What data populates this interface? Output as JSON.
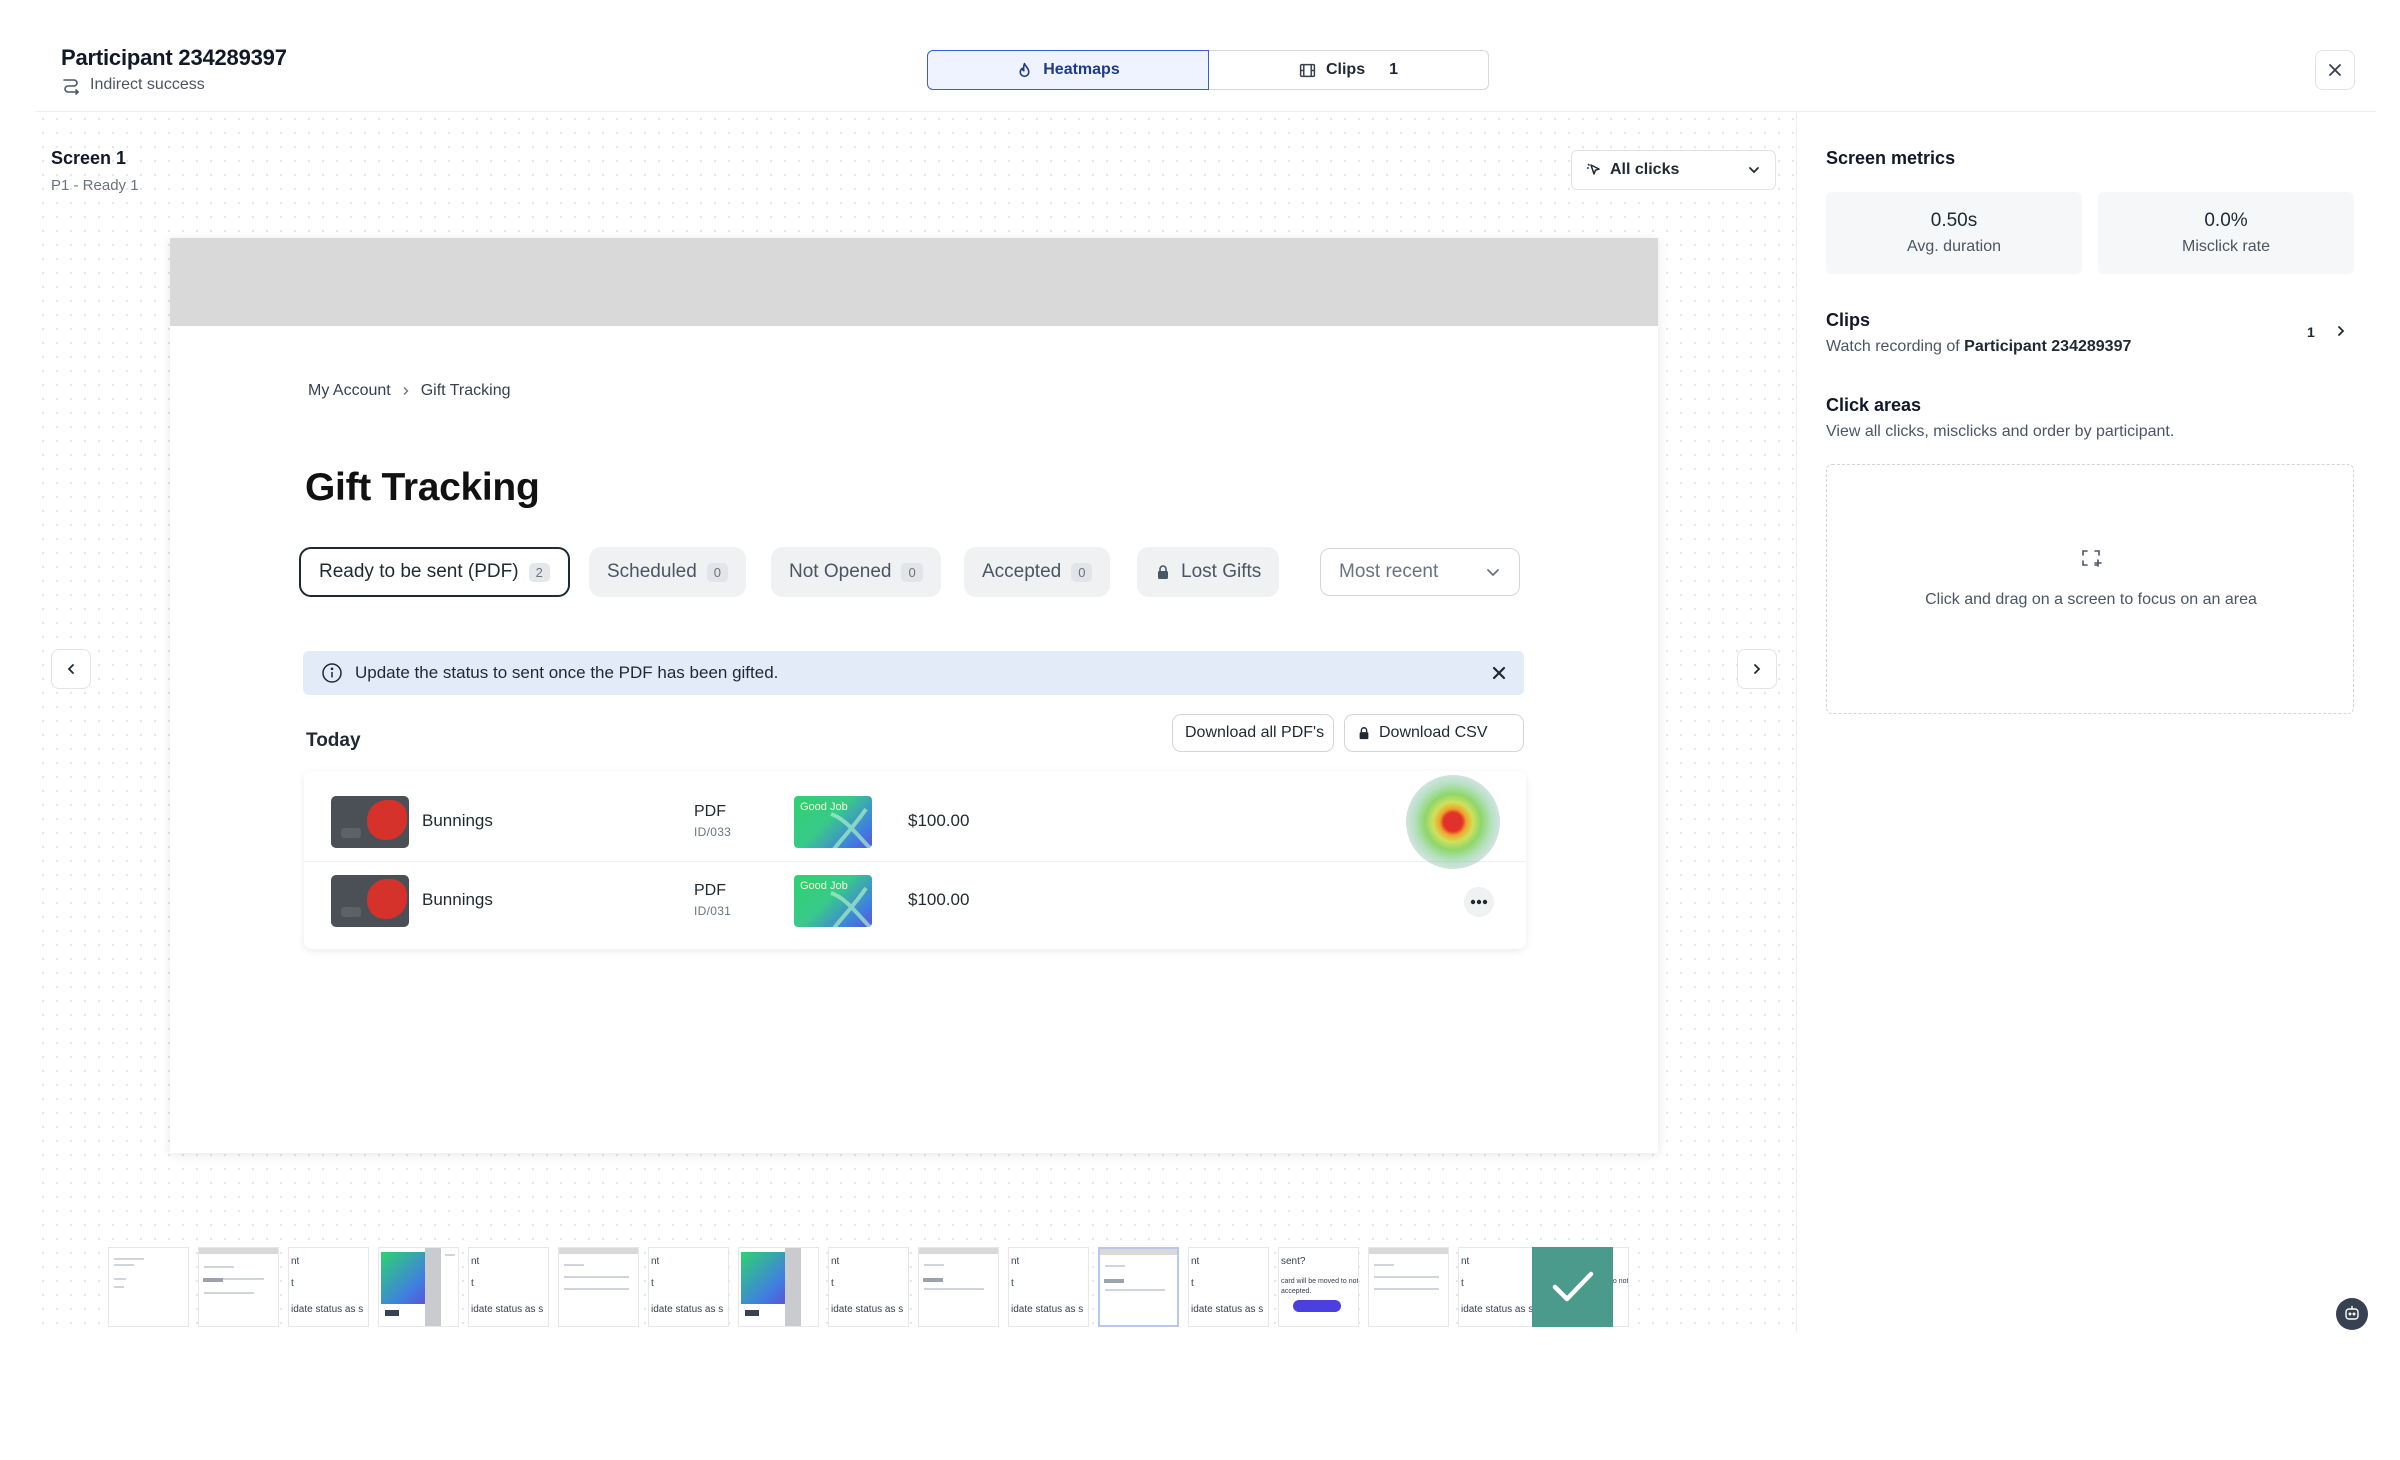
{
  "header": {
    "participant_title": "Participant 234289397",
    "status": "Indirect success",
    "tabs": [
      {
        "label": "Heatmaps",
        "active": true
      },
      {
        "label": "Clips",
        "count": "1",
        "active": false
      }
    ]
  },
  "screen": {
    "title": "Screen 1",
    "subtitle": "P1 - Ready 1",
    "clicks_filter": "All clicks"
  },
  "mock": {
    "breadcrumb": [
      "My Account",
      "Gift Tracking"
    ],
    "heading": "Gift Tracking",
    "filters": [
      {
        "label": "Ready to be sent (PDF)",
        "count": "2",
        "active": true
      },
      {
        "label": "Scheduled",
        "count": "0"
      },
      {
        "label": "Not Opened",
        "count": "0"
      },
      {
        "label": "Accepted",
        "count": "0"
      },
      {
        "label": "Lost Gifts",
        "locked": true
      }
    ],
    "sort": "Most recent",
    "banner": "Update the status to sent once the PDF has been gifted.",
    "section": "Today",
    "download_pdfs": "Download all PDF's",
    "download_csv": "Download CSV",
    "card_text": "Good Job",
    "rows": [
      {
        "merchant": "Bunnings",
        "type": "PDF",
        "id": "ID/033",
        "amount": "$100.00"
      },
      {
        "merchant": "Bunnings",
        "type": "PDF",
        "id": "ID/031",
        "amount": "$100.00"
      }
    ]
  },
  "thumbnails": {
    "snippet_a": "nt",
    "snippet_b": "t",
    "snippet_status": "idate status as s",
    "snippet_q": "sent?",
    "snippet_moved": "card will be moved to not o",
    "snippet_accepted": "accepted."
  },
  "metrics": {
    "title": "Screen metrics",
    "items": [
      {
        "value": "0.50s",
        "label": "Avg. duration"
      },
      {
        "value": "0.0%",
        "label": "Misclick rate"
      }
    ]
  },
  "clips": {
    "title": "Clips",
    "desc_prefix": "Watch recording of",
    "desc_name": "Participant 234289397",
    "count": "1"
  },
  "click_areas": {
    "title": "Click areas",
    "desc": "View all clicks, misclicks and order by participant.",
    "empty_text": "Click and drag on a screen to focus on an area"
  }
}
